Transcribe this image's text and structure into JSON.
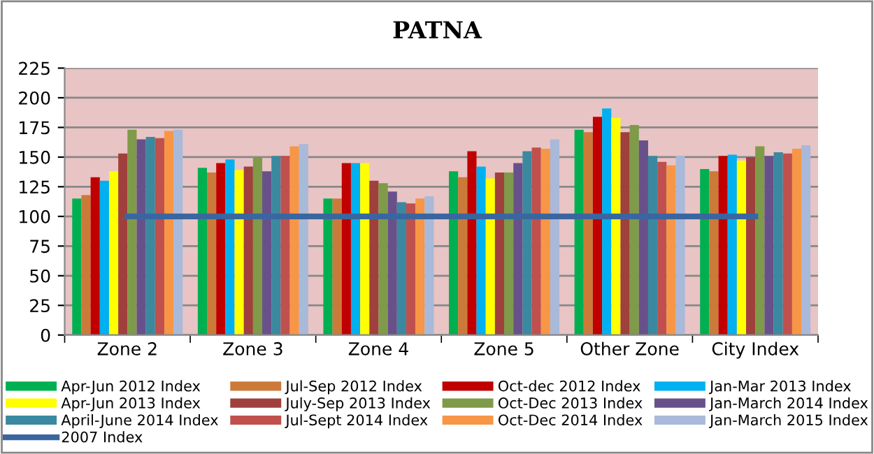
{
  "chart_data": {
    "type": "bar",
    "title": "PATNA",
    "categories": [
      "Zone 2",
      "Zone 3",
      "Zone 4",
      "Zone 5",
      "Other Zone",
      "City Index"
    ],
    "series": [
      {
        "name": "Apr-Jun 2012 Index",
        "color": "#00b050",
        "values": [
          115,
          141,
          115,
          138,
          173,
          140
        ]
      },
      {
        "name": "Jul-Sep 2012 Index",
        "color": "#cc7a3a",
        "values": [
          118,
          137,
          115,
          133,
          171,
          138
        ]
      },
      {
        "name": "Oct-dec 2012 Index",
        "color": "#c00000",
        "values": [
          133,
          145,
          145,
          155,
          184,
          151
        ]
      },
      {
        "name": "Jan-Mar 2013 Index",
        "color": "#00b0f0",
        "values": [
          130,
          148,
          145,
          142,
          191,
          152
        ]
      },
      {
        "name": "Apr-Jun 2013 Index",
        "color": "#ffff00",
        "values": [
          138,
          139,
          145,
          132,
          183,
          147
        ]
      },
      {
        "name": "July-Sep 2013 Index",
        "color": "#a0403c",
        "values": [
          153,
          142,
          130,
          137,
          171,
          150
        ]
      },
      {
        "name": "Oct-Dec 2013 Index",
        "color": "#7f9a48",
        "values": [
          173,
          150,
          128,
          137,
          177,
          159
        ]
      },
      {
        "name": "Jan-March 2014 Index",
        "color": "#68518a",
        "values": [
          165,
          138,
          121,
          145,
          164,
          151
        ]
      },
      {
        "name": "April-June 2014 Index",
        "color": "#3a89a0",
        "values": [
          167,
          151,
          112,
          155,
          151,
          154
        ]
      },
      {
        "name": "Jul-Sept 2014 Index",
        "color": "#c0504d",
        "values": [
          166,
          151,
          111,
          158,
          146,
          153
        ]
      },
      {
        "name": "Oct-Dec 2014 Index",
        "color": "#f79646",
        "values": [
          172,
          159,
          115,
          157,
          143,
          157
        ]
      },
      {
        "name": "Jan-March 2015 Index",
        "color": "#a9b9d9",
        "values": [
          173,
          161,
          117,
          165,
          151,
          160
        ]
      },
      {
        "name": "2007 Index",
        "type": "line",
        "color": "#3a66a0",
        "values": [
          100,
          100,
          100,
          100,
          100,
          100
        ]
      }
    ],
    "ylim": [
      0,
      225
    ],
    "yticks": [
      0,
      25,
      50,
      75,
      100,
      125,
      150,
      175,
      200,
      225
    ],
    "grid": "y",
    "legend": "bottom"
  }
}
